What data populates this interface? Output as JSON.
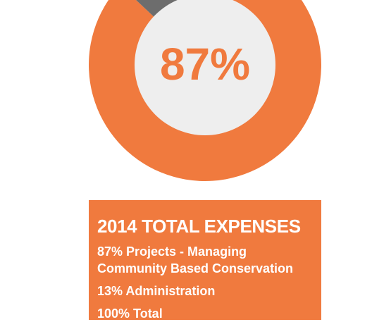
{
  "chart_data": {
    "type": "pie",
    "style": "donut",
    "center_label": "87%",
    "slices": [
      {
        "label": "Projects - Managing Community Based Conservation",
        "value": 87,
        "color": "#f07a3e"
      },
      {
        "label": "Administration",
        "value": 13,
        "color": "#6d6d6d"
      }
    ],
    "hole_color": "#eeeeee"
  },
  "card": {
    "title": "2014 TOTAL EXPENSES",
    "lines": [
      "87% Projects - Managing Community Based Conservation",
      "13% Administration",
      "100% Total"
    ],
    "background": "#f07a3e"
  }
}
